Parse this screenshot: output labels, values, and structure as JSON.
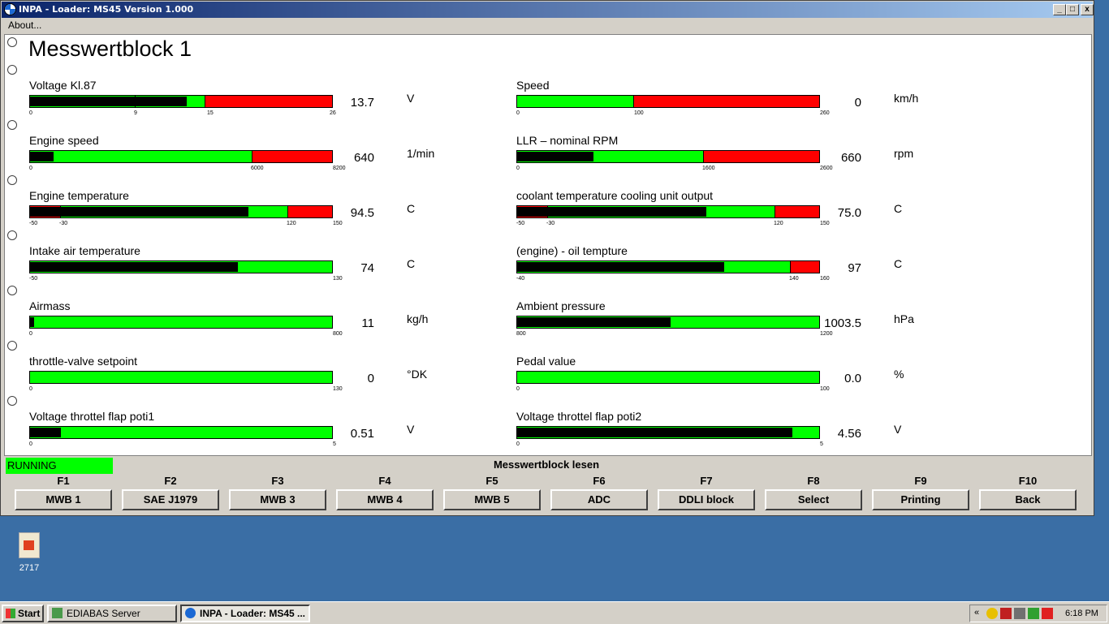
{
  "window": {
    "title": "INPA - Loader:  MS45 Version 1.000",
    "menu_about": "About...",
    "minimize_glyph": "_",
    "maximize_glyph": "□",
    "close_glyph": "x"
  },
  "main": {
    "block_title": "Messwertblock 1",
    "gauges": [
      {
        "label": "Voltage Kl.87",
        "value": "13.7",
        "unit": "V",
        "ticks": [
          "0",
          "9",
          "15",
          "26"
        ],
        "fill_fraction": 0.52,
        "colors": {
          "bar": "#00ff00",
          "alarm": "#ff0000"
        }
      },
      {
        "label": "Speed",
        "value": "0",
        "unit": "km/h",
        "ticks": [
          "0",
          "100",
          "260"
        ],
        "fill_fraction": 0.0
      },
      {
        "label": "Engine speed",
        "value": "640",
        "unit": "1/min",
        "ticks": [
          "0",
          "6000",
          "8200"
        ],
        "fill_fraction": 0.078
      },
      {
        "label": "LLR – nominal RPM",
        "value": "660",
        "unit": "rpm",
        "ticks": [
          "0",
          "1600",
          "2600"
        ],
        "fill_fraction": 0.254
      },
      {
        "label": "Engine temperature",
        "value": "94.5",
        "unit": "C",
        "ticks": [
          "-50",
          "-30",
          "120",
          "150"
        ],
        "fill_fraction": 0.723
      },
      {
        "label": "coolant temperature cooling unit output",
        "value": "75.0",
        "unit": "C",
        "ticks": [
          "-50",
          "-30",
          "120",
          "150"
        ],
        "fill_fraction": 0.625
      },
      {
        "label": "Intake air temperature",
        "value": "74",
        "unit": "C",
        "ticks": [
          "-50",
          "130"
        ],
        "fill_fraction": 0.689
      },
      {
        "label": "(engine) - oil tempture",
        "value": "97",
        "unit": "C",
        "ticks": [
          "-40",
          "140",
          "160"
        ],
        "fill_fraction": 0.685
      },
      {
        "label": "Airmass",
        "value": "11",
        "unit": "kg/h",
        "ticks": [
          "0",
          "800"
        ],
        "fill_fraction": 0.014
      },
      {
        "label": "Ambient pressure",
        "value": "1003.5",
        "unit": "hPa",
        "ticks": [
          "800",
          "1200"
        ],
        "fill_fraction": 0.509
      },
      {
        "label": "throttle-valve setpoint",
        "value": "0",
        "unit": "°DK",
        "ticks": [
          "0",
          "130"
        ],
        "fill_fraction": 0.0
      },
      {
        "label": "Pedal value",
        "value": "0.0",
        "unit": "%",
        "ticks": [
          "0",
          "100"
        ],
        "fill_fraction": 0.0
      },
      {
        "label": "Voltage throttel flap poti1",
        "value": "0.51",
        "unit": "V",
        "ticks": [
          "0",
          "5"
        ],
        "fill_fraction": 0.102
      },
      {
        "label": "Voltage throttel flap poti2",
        "value": "4.56",
        "unit": "V",
        "ticks": [
          "0",
          "5"
        ],
        "fill_fraction": 0.912
      }
    ]
  },
  "status": {
    "running": "RUNNING",
    "title": "Messwertblock lesen"
  },
  "fkeys": [
    {
      "key": "F1",
      "label": "MWB 1"
    },
    {
      "key": "F2",
      "label": "SAE J1979"
    },
    {
      "key": "F3",
      "label": "MWB 3"
    },
    {
      "key": "F4",
      "label": "MWB 4"
    },
    {
      "key": "F5",
      "label": "MWB 5"
    },
    {
      "key": "F6",
      "label": "ADC"
    },
    {
      "key": "F7",
      "label": "DDLI block"
    },
    {
      "key": "F8",
      "label": "Select"
    },
    {
      "key": "F9",
      "label": "Printing"
    },
    {
      "key": "F10",
      "label": "Back"
    }
  ],
  "desktop": {
    "icon_label": "2717"
  },
  "taskbar": {
    "start": "Start",
    "tasks": [
      "EDIABAS Server",
      "INPA - Loader:  MS45 ..."
    ],
    "tray_chevron": "«",
    "clock": "6:18 PM"
  }
}
